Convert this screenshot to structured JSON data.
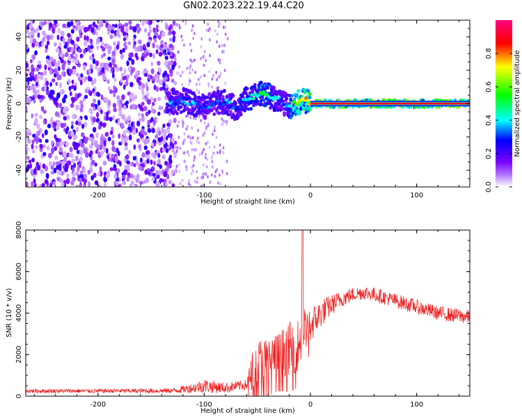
{
  "title": "GN02.2023.222.19.44.C20",
  "chart_data": [
    {
      "type": "heatmap",
      "xlabel": "Height of straight line (km)",
      "ylabel": "Frequency (Hz)",
      "xlim": [
        -268,
        150
      ],
      "ylim": [
        -50,
        50
      ],
      "xticks": [
        -200,
        -100,
        0,
        100
      ],
      "yticks": [
        -40,
        -20,
        0,
        20,
        40
      ],
      "colorbar": {
        "label": "Normalized spectral amplitude",
        "range": [
          0,
          1
        ],
        "ticks": [
          0.0,
          0.2,
          0.4,
          0.6,
          0.8
        ],
        "colormap": [
          "#ffffff",
          "#7a00ff",
          "#0000ff",
          "#00ffff",
          "#00ff00",
          "#ffff00",
          "#ff0000",
          "#ff0080"
        ]
      },
      "regions": [
        {
          "x_range": [
            -268,
            -127
          ],
          "freq_range": [
            -50,
            50
          ],
          "amplitude": 0.08,
          "texture": "dense scattered noise"
        },
        {
          "x_range": [
            -127,
            -78
          ],
          "freq_range": [
            -50,
            50
          ],
          "amplitude": 0.03,
          "texture": "sparse faint noise"
        },
        {
          "x_range": [
            -130,
            0
          ],
          "freq_range": [
            -8,
            8
          ],
          "amplitude": 0.4,
          "texture": "band with blue-green blobs"
        },
        {
          "x_range": [
            0,
            150
          ],
          "freq_range": [
            -2,
            2
          ],
          "amplitude": 0.9,
          "texture": "continuous line at 0 Hz"
        }
      ],
      "ridge": {
        "x": [
          -130,
          -120,
          -110,
          -100,
          -90,
          -80,
          -70,
          -60,
          -50,
          -45,
          -40,
          -35,
          -30,
          -25,
          -20,
          -15,
          -10,
          -5,
          0,
          10,
          50,
          100,
          150
        ],
        "freq": [
          0,
          2,
          0,
          -2,
          0,
          1,
          -3,
          3,
          5,
          6,
          5,
          3,
          2,
          0,
          -2,
          0,
          1,
          2,
          0,
          0,
          0,
          0,
          0
        ],
        "amplitude": [
          0.35,
          0.3,
          0.35,
          0.3,
          0.3,
          0.35,
          0.3,
          0.4,
          0.45,
          0.5,
          0.45,
          0.4,
          0.35,
          0.3,
          0.4,
          0.6,
          0.7,
          0.75,
          0.8,
          0.9,
          0.9,
          0.9,
          0.9
        ]
      }
    },
    {
      "type": "line",
      "xlabel": "Height of straight line (km)",
      "ylabel": "SNR (10 * v/v)",
      "xlim": [
        -268,
        150
      ],
      "ylim": [
        0,
        8000
      ],
      "xticks": [
        -200,
        -100,
        0,
        100
      ],
      "yticks": [
        0,
        2000,
        4000,
        6000,
        8000
      ],
      "color": "#ee2222",
      "envelope": {
        "x": [
          -268,
          -200,
          -130,
          -110,
          -100,
          -80,
          -60,
          -55,
          -50,
          -40,
          -30,
          -20,
          -10,
          -7,
          -5,
          0,
          10,
          20,
          30,
          40,
          50,
          60,
          80,
          100,
          120,
          150
        ],
        "mean": [
          250,
          250,
          260,
          400,
          500,
          400,
          550,
          1200,
          1700,
          1800,
          2000,
          2300,
          2500,
          3500,
          3200,
          3400,
          4000,
          4400,
          4700,
          4900,
          5000,
          4900,
          4600,
          4300,
          4000,
          3800
        ],
        "noise": [
          100,
          100,
          120,
          250,
          350,
          250,
          250,
          900,
          1100,
          1100,
          1100,
          1300,
          1300,
          1600,
          900,
          900,
          700,
          500,
          400,
          350,
          350,
          350,
          350,
          350,
          350,
          350
        ]
      },
      "spike": {
        "x": -7.5,
        "y": 8000
      }
    }
  ]
}
